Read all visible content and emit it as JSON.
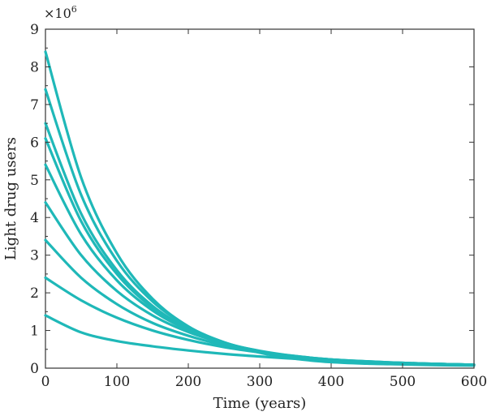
{
  "chart_data": {
    "type": "line",
    "xlabel": "Time (years)",
    "ylabel": "Light drug users",
    "y_multiplier": "×10",
    "y_multiplier_exp": "6",
    "xlim": [
      0,
      600
    ],
    "ylim": [
      0,
      9
    ],
    "grid": false,
    "line_color": "#1fb8b8",
    "x_ticks": [
      "0",
      "100",
      "200",
      "300",
      "400",
      "500",
      "600"
    ],
    "y_ticks": [
      "0",
      "1",
      "2",
      "3",
      "4",
      "5",
      "6",
      "7",
      "8",
      "9"
    ],
    "x": [
      0,
      50,
      100,
      150,
      200,
      250,
      300,
      350,
      400,
      450,
      500,
      550,
      600
    ],
    "series": [
      {
        "values": [
          8.4,
          5.06,
          3.05,
          1.84,
          1.11,
          0.67,
          0.41,
          0.25,
          0.16,
          0.12,
          0.1,
          0.08,
          0.07
        ]
      },
      {
        "values": [
          7.4,
          4.6,
          2.85,
          1.77,
          1.1,
          0.69,
          0.44,
          0.29,
          0.2,
          0.15,
          0.12,
          0.1,
          0.09
        ]
      },
      {
        "values": [
          6.5,
          4.1,
          2.6,
          1.65,
          1.05,
          0.68,
          0.45,
          0.3,
          0.21,
          0.16,
          0.13,
          0.11,
          0.09
        ]
      },
      {
        "values": [
          6.1,
          3.9,
          2.5,
          1.6,
          1.03,
          0.67,
          0.45,
          0.3,
          0.21,
          0.16,
          0.13,
          0.11,
          0.09
        ]
      },
      {
        "values": [
          5.4,
          3.55,
          2.33,
          1.53,
          1.01,
          0.67,
          0.45,
          0.31,
          0.22,
          0.17,
          0.13,
          0.11,
          0.09
        ]
      },
      {
        "values": [
          4.4,
          3.0,
          2.05,
          1.4,
          0.96,
          0.66,
          0.46,
          0.32,
          0.23,
          0.17,
          0.14,
          0.11,
          0.09
        ]
      },
      {
        "values": [
          3.4,
          2.4,
          1.7,
          1.2,
          0.86,
          0.61,
          0.44,
          0.32,
          0.23,
          0.18,
          0.14,
          0.11,
          0.09
        ]
      },
      {
        "values": [
          2.4,
          1.8,
          1.34,
          1.0,
          0.75,
          0.56,
          0.42,
          0.31,
          0.23,
          0.18,
          0.14,
          0.11,
          0.09
        ]
      },
      {
        "values": [
          1.4,
          0.95,
          0.72,
          0.58,
          0.47,
          0.38,
          0.31,
          0.25,
          0.2,
          0.16,
          0.13,
          0.1,
          0.08
        ]
      }
    ]
  }
}
